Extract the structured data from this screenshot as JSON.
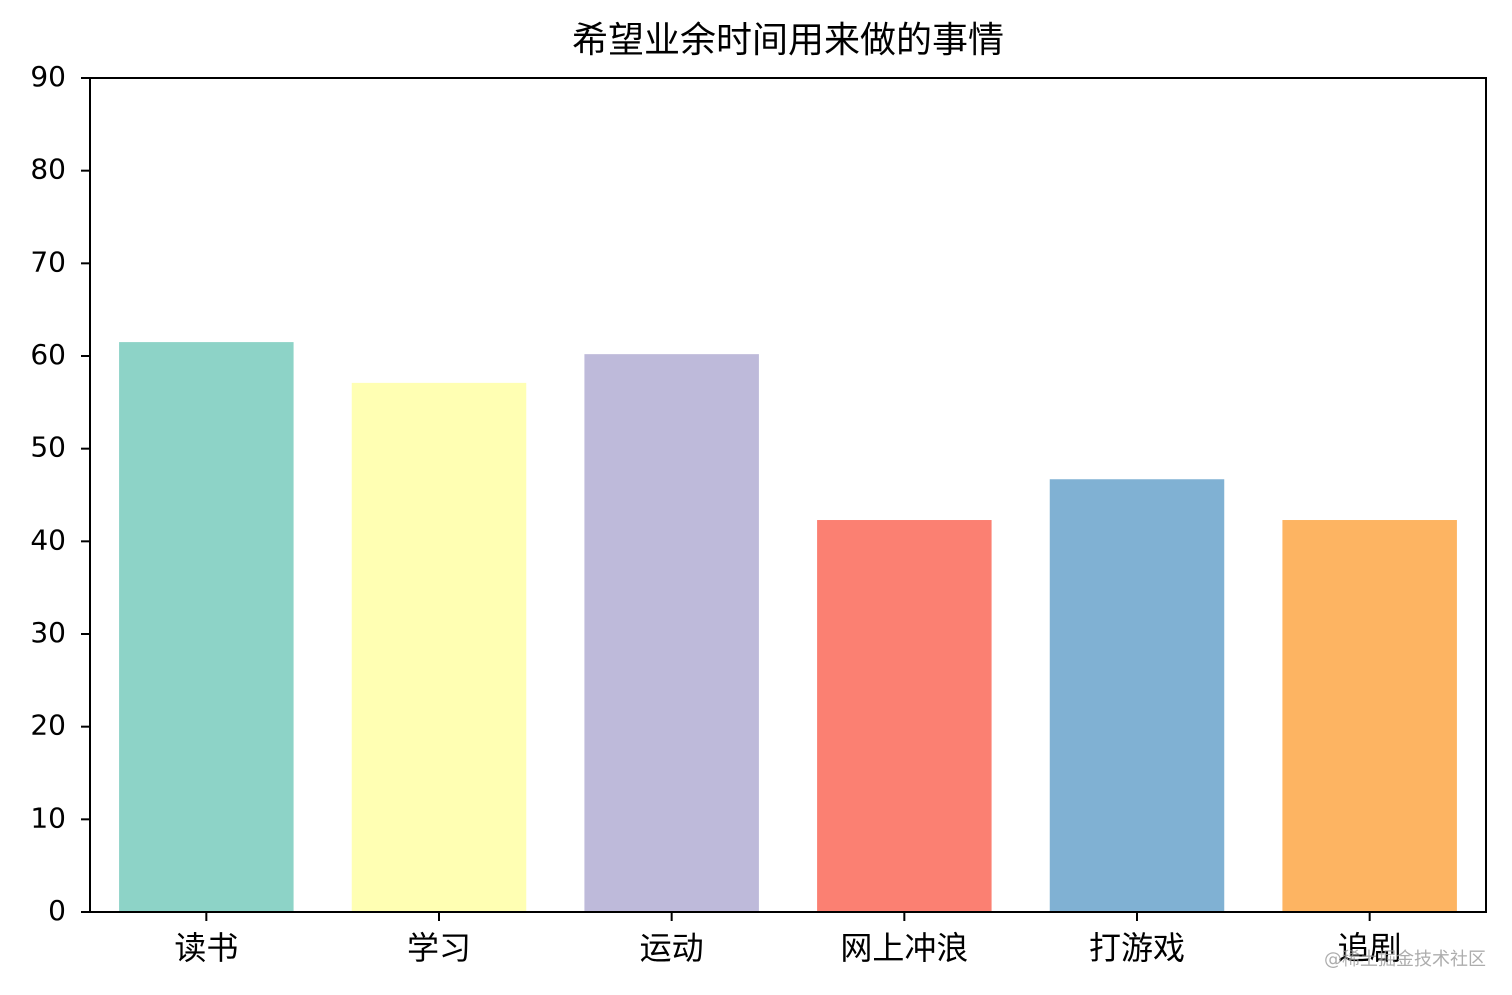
{
  "chart_data": {
    "type": "bar",
    "title": "希望业余时间用来做的事情",
    "categories": [
      "读书",
      "学习",
      "运动",
      "网上冲浪",
      "打游戏",
      "追剧"
    ],
    "values": [
      61.5,
      57.1,
      60.2,
      42.3,
      46.7,
      42.3
    ],
    "colors": [
      "#8dd3c7",
      "#ffffb3",
      "#bebada",
      "#fb8072",
      "#80b1d3",
      "#fdb462"
    ],
    "ylim": [
      0,
      90
    ],
    "yticks": [
      0,
      10,
      20,
      30,
      40,
      50,
      60,
      70,
      80,
      90
    ],
    "grid": false,
    "watermark": "@稀土掘金技术社区"
  }
}
